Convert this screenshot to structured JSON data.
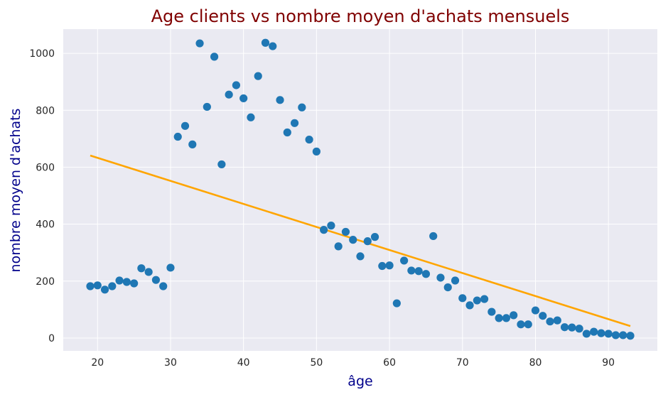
{
  "chart_data": {
    "type": "scatter",
    "title": "Age clients vs nombre moyen d'achats mensuels",
    "xlabel": "âge",
    "ylabel": "nombre moyen d'achats",
    "xlim": [
      15.3,
      96.7
    ],
    "ylim": [
      -45,
      1085
    ],
    "xticks": [
      20,
      30,
      40,
      50,
      60,
      70,
      80,
      90
    ],
    "yticks": [
      0,
      200,
      400,
      600,
      800,
      1000
    ],
    "grid": true,
    "colors": {
      "background": "#eaeaf2",
      "grid": "#ffffff",
      "points": "#1f77b4",
      "trend": "#ffa500",
      "title": "#800000",
      "axis_label": "#00008b"
    },
    "series": [
      {
        "type": "scatter",
        "x": [
          19,
          20,
          21,
          22,
          23,
          24,
          25,
          26,
          27,
          28,
          29,
          30,
          31,
          32,
          33,
          34,
          35,
          36,
          37,
          38,
          39,
          40,
          41,
          42,
          43,
          44,
          45,
          46,
          47,
          48,
          49,
          50,
          51,
          52,
          53,
          54,
          55,
          56,
          57,
          58,
          59,
          60,
          61,
          62,
          63,
          64,
          65,
          66,
          67,
          68,
          69,
          70,
          71,
          72,
          73,
          74,
          75,
          76,
          77,
          78,
          79,
          80,
          81,
          82,
          83,
          84,
          85,
          86,
          87,
          88,
          89,
          90,
          91,
          92,
          93
        ],
        "y": [
          182,
          185,
          170,
          182,
          202,
          197,
          192,
          245,
          232,
          204,
          182,
          247,
          707,
          745,
          680,
          1035,
          812,
          988,
          610,
          855,
          888,
          842,
          775,
          920,
          1037,
          1025,
          836,
          722,
          755,
          810,
          697,
          655,
          380,
          395,
          322,
          373,
          345,
          287,
          340,
          355,
          253,
          255,
          122,
          272,
          237,
          235,
          225,
          358,
          212,
          178,
          202,
          140,
          115,
          132,
          137,
          92,
          70,
          70,
          80,
          48,
          48,
          97,
          78,
          58,
          62,
          38,
          37,
          33,
          15,
          22,
          17,
          15,
          10,
          10,
          8
        ]
      },
      {
        "type": "line",
        "x": [
          19,
          93
        ],
        "y": [
          641,
          42
        ]
      }
    ]
  }
}
